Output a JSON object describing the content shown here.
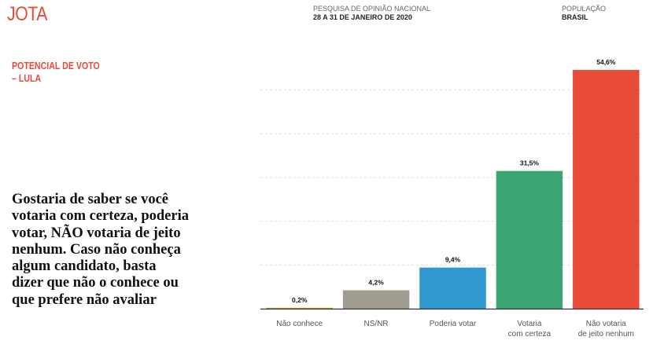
{
  "header": {
    "logo": "JOTA",
    "survey_label": "PESQUISA DE OPINIÃO NACIONAL",
    "survey_date": "28 A 31 DE JANEIRO DE 2020",
    "population_label": "POPULAÇÃO",
    "population_value": "BRASIL"
  },
  "title_lines": [
    "POTENCIAL DE VOTO",
    "– LULA"
  ],
  "question_lines": [
    "Gostaria de saber se você",
    "votaria com certeza, poderia",
    "votar, NÃO votaria de jeito",
    "nenhum. Caso não conheça",
    "algum candidato, basta",
    "dizer que não o conhece ou",
    "que prefere não avaliar"
  ],
  "chart_data": {
    "type": "bar",
    "title": "POTENCIAL DE VOTO – LULA",
    "categories": [
      [
        "Não conhece"
      ],
      [
        "NS/NR"
      ],
      [
        "Poderia votar"
      ],
      [
        "Votaria",
        "com certeza"
      ],
      [
        "Não votaria",
        "de jeito nenhum"
      ]
    ],
    "values": [
      0.2,
      4.2,
      9.4,
      31.5,
      54.6
    ],
    "labels": [
      "0,2%",
      "4,2%",
      "9,4%",
      "31,5%",
      "54,6%"
    ],
    "colors": [
      "#b8a030",
      "#a09d90",
      "#2f98cf",
      "#3ca574",
      "#e84b37"
    ],
    "ylim": [
      0,
      60
    ],
    "gridlines": [
      10,
      20,
      30,
      40,
      50
    ],
    "grid": true,
    "xlabel": "",
    "ylabel": ""
  }
}
